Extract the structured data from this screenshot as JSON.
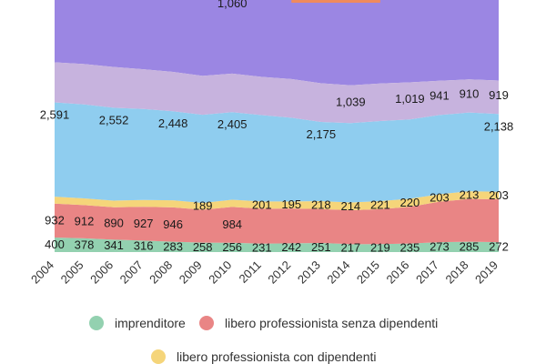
{
  "chart_data": {
    "type": "area",
    "stacked": true,
    "categories": [
      "2004",
      "2005",
      "2006",
      "2007",
      "2008",
      "2009",
      "2010",
      "2011",
      "2012",
      "2013",
      "2014",
      "2015",
      "2016",
      "2017",
      "2018",
      "2019"
    ],
    "series": [
      {
        "name": "imprenditore",
        "color": "#93d1b0",
        "values": [
          400,
          378,
          341,
          316,
          283,
          258,
          256,
          231,
          242,
          251,
          217,
          219,
          235,
          273,
          285,
          272
        ],
        "labels": [
          "400",
          "378",
          "341",
          "316",
          "283",
          "258",
          "256",
          "231",
          "242",
          "251",
          "217",
          "219",
          "235",
          "273",
          "285",
          "272"
        ]
      },
      {
        "name": "libero professionista senza dipendenti",
        "color": "#e98585",
        "values": [
          932,
          912,
          890,
          927,
          946,
          904,
          984,
          960,
          955,
          930,
          932,
          960,
          1010,
          1110,
          1175,
          1180
        ],
        "labels": [
          "932",
          "912",
          "890",
          "927",
          "946",
          "",
          "984",
          "",
          "",
          "",
          "",
          "",
          "",
          "",
          "",
          ""
        ]
      },
      {
        "name": "libero professionista con dipendenti",
        "color": "#f5d57a",
        "values": [
          190,
          185,
          182,
          188,
          192,
          189,
          199,
          201,
          195,
          218,
          214,
          221,
          220,
          203,
          213,
          203
        ],
        "labels": [
          "",
          "",
          "",
          "",
          "",
          "189",
          "",
          "201",
          "195",
          "218",
          "214",
          "221",
          "220",
          "203",
          "213",
          "203"
        ]
      },
      {
        "name": "",
        "color": "#8fcdef",
        "values": [
          2591,
          2580,
          2552,
          2500,
          2448,
          2420,
          2405,
          2370,
          2300,
          2175,
          2180,
          2200,
          2180,
          2180,
          2160,
          2138
        ],
        "labels": [
          "2,591",
          "",
          "2,552",
          "",
          "2,448",
          "",
          "2,405",
          "",
          "",
          "2,175",
          "",
          "",
          "",
          "",
          "",
          "2,138"
        ]
      },
      {
        "name": "",
        "color": "#c7b3de",
        "values": [
          1100,
          1110,
          1120,
          1090,
          1080,
          1070,
          1060,
          1050,
          1060,
          1062,
          1039,
          1032,
          1019,
          941,
          910,
          919
        ],
        "labels": [
          "",
          "",
          "",
          "",
          "",
          "",
          "1,060",
          "",
          "",
          "",
          "1,039",
          "",
          "1,019",
          "941",
          "910",
          "919"
        ]
      }
    ],
    "top_band_color": "#9b86e3",
    "accent_color": "#f08a5d"
  },
  "legend": [
    {
      "label": "imprenditore",
      "color": "#93d1b0"
    },
    {
      "label": "libero professionista senza dipendenti",
      "color": "#e98585"
    },
    {
      "label": "libero professionista con dipendenti",
      "color": "#f5d57a"
    }
  ]
}
